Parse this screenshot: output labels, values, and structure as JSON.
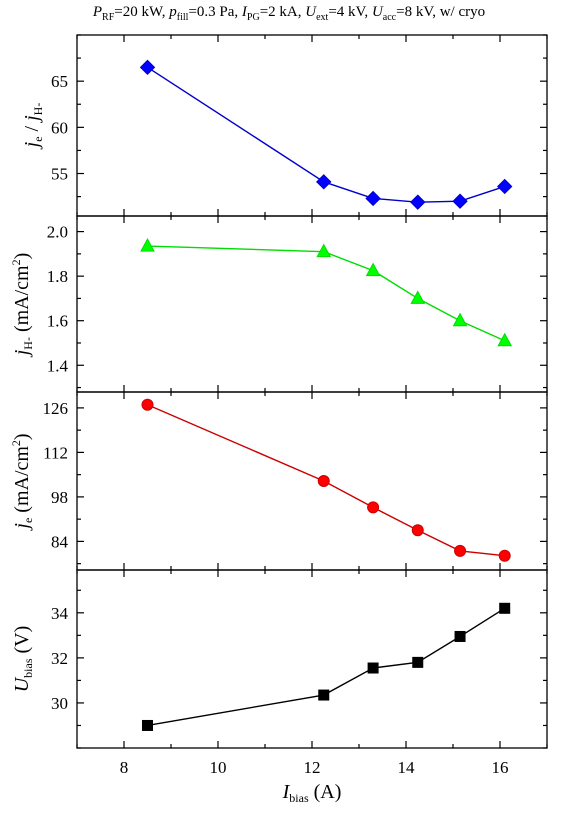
{
  "title_parts": {
    "p": "P",
    "rf": "RF",
    "p_val": "=20 kW, ",
    "pf": "p",
    "fill": "fill",
    "pf_val": "=0.3 Pa, ",
    "ipg": "I",
    "pg": "PG",
    "ipg_val": "=2 kA, ",
    "uext": "U",
    "ext": "ext",
    "uext_val": "=4 kV, ",
    "uacc": "U",
    "acc": "acc",
    "uacc_val": "=8 kV, w/ cryo"
  },
  "xlabel": {
    "main": "I",
    "sub": "bias",
    "unit": " (A)"
  },
  "chart_data": [
    {
      "type": "line",
      "ylabel": {
        "main": "j",
        "sub": "e",
        "sep": " / ",
        "main2": "j",
        "sub2": "H-"
      },
      "x": [
        8.5,
        12.25,
        13.3,
        14.25,
        15.15,
        16.1
      ],
      "y": [
        66.5,
        54.1,
        52.3,
        51.9,
        52.0,
        53.6
      ],
      "yticks": [
        "55",
        "60",
        "65"
      ],
      "yrange": [
        50.4,
        70.0
      ],
      "marker": "diamond",
      "color": "#0000cc",
      "fill": "#0000ff"
    },
    {
      "type": "line",
      "ylabel": {
        "main": "j",
        "sub": "H-",
        "unit": " (mA/cm",
        "sup": "2",
        "close": ")"
      },
      "x": [
        8.5,
        12.25,
        13.3,
        14.25,
        15.15,
        16.1
      ],
      "y": [
        1.935,
        1.91,
        1.825,
        1.7,
        1.6,
        1.51
      ],
      "yticks": [
        "1.4",
        "1.6",
        "1.8",
        "2.0"
      ],
      "yrange": [
        1.28,
        2.07
      ],
      "marker": "triangle",
      "color": "#00dd00",
      "fill": "#00ff00"
    },
    {
      "type": "line",
      "ylabel": {
        "main": "j",
        "sub": "e",
        "unit": " (mA/cm",
        "sup": "2",
        "close": ")"
      },
      "x": [
        8.5,
        12.25,
        13.3,
        14.25,
        15.15,
        16.1
      ],
      "y": [
        127.0,
        103.0,
        94.7,
        87.5,
        81.0,
        79.5
      ],
      "yticks": [
        "84",
        "98",
        "112",
        "126"
      ],
      "yrange": [
        75.0,
        131.0
      ],
      "marker": "circle",
      "color": "#cc0000",
      "fill": "#ff0000"
    },
    {
      "type": "line",
      "ylabel": {
        "main": "U",
        "sub": "bias",
        "unit": " (V)"
      },
      "x": [
        8.5,
        12.25,
        13.3,
        14.25,
        15.15,
        16.1
      ],
      "y": [
        29.0,
        30.35,
        31.55,
        31.8,
        32.95,
        34.2
      ],
      "yticks": [
        "30",
        "32",
        "34"
      ],
      "yrange": [
        28.0,
        35.9
      ],
      "marker": "square",
      "color": "#000000",
      "fill": "#000000"
    }
  ],
  "xticks": [
    "8",
    "10",
    "12",
    "14",
    "16"
  ],
  "xrange": [
    7.0,
    17.0
  ]
}
